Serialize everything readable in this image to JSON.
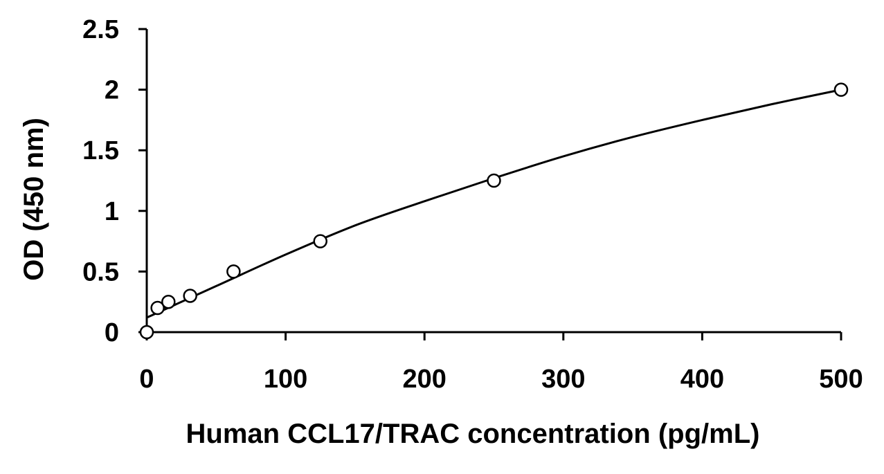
{
  "chart_data": {
    "type": "scatter",
    "title": "",
    "xlabel": "Human CCL17/TRAC concentration (pg/mL)",
    "ylabel": "OD (450 nm)",
    "xlim": [
      0,
      500
    ],
    "ylim": [
      0,
      2.5
    ],
    "x_ticks": [
      0,
      100,
      200,
      300,
      400,
      500
    ],
    "x_tick_labels": [
      "0",
      "100",
      "200",
      "300",
      "400",
      "500"
    ],
    "y_ticks": [
      0,
      0.5,
      1,
      1.5,
      2,
      2.5
    ],
    "y_tick_labels": [
      "0",
      "0.5",
      "1",
      "1.5",
      "2",
      "2.5"
    ],
    "grid": false,
    "legend": "none",
    "series": [
      {
        "marker": "open-circle",
        "x": [
          0,
          7.8,
          15.6,
          31.25,
          62.5,
          125,
          250,
          500
        ],
        "y": [
          0.0,
          0.2,
          0.25,
          0.3,
          0.5,
          0.75,
          1.25,
          2.0
        ]
      }
    ],
    "fit_curve": {
      "x": [
        0,
        50,
        100,
        150,
        200,
        250,
        300,
        350,
        400,
        450,
        500
      ],
      "y": [
        0.12,
        0.38,
        0.64,
        0.88,
        1.08,
        1.27,
        1.45,
        1.61,
        1.75,
        1.88,
        2.0
      ]
    },
    "colors": {
      "axis": "#000000",
      "marker_fill": "#ffffff",
      "marker_stroke": "#000000",
      "curve": "#000000"
    }
  }
}
